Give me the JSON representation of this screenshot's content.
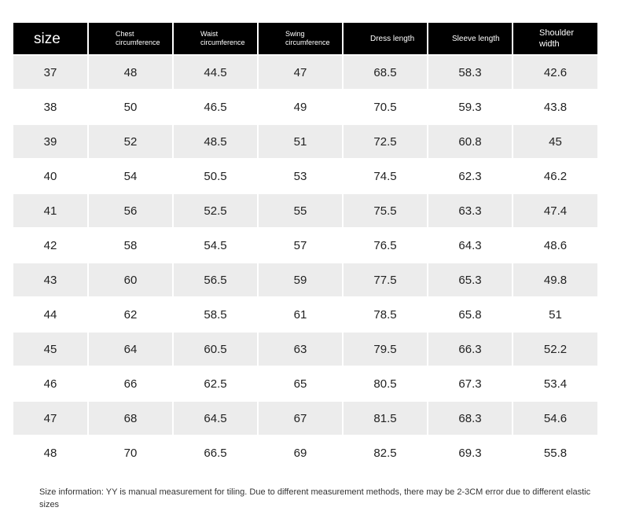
{
  "table": {
    "headers": [
      "size",
      "Chest circumference",
      "Waist circumference",
      "Swing circumference",
      "Dress length",
      "Sleeve length",
      "Shoulder width"
    ],
    "rows": [
      [
        "37",
        "48",
        "44.5",
        "47",
        "68.5",
        "58.3",
        "42.6"
      ],
      [
        "38",
        "50",
        "46.5",
        "49",
        "70.5",
        "59.3",
        "43.8"
      ],
      [
        "39",
        "52",
        "48.5",
        "51",
        "72.5",
        "60.8",
        "45"
      ],
      [
        "40",
        "54",
        "50.5",
        "53",
        "74.5",
        "62.3",
        "46.2"
      ],
      [
        "41",
        "56",
        "52.5",
        "55",
        "75.5",
        "63.3",
        "47.4"
      ],
      [
        "42",
        "58",
        "54.5",
        "57",
        "76.5",
        "64.3",
        "48.6"
      ],
      [
        "43",
        "60",
        "56.5",
        "59",
        "77.5",
        "65.3",
        "49.8"
      ],
      [
        "44",
        "62",
        "58.5",
        "61",
        "78.5",
        "65.8",
        "51"
      ],
      [
        "45",
        "64",
        "60.5",
        "63",
        "79.5",
        "66.3",
        "52.2"
      ],
      [
        "46",
        "66",
        "62.5",
        "65",
        "80.5",
        "67.3",
        "53.4"
      ],
      [
        "47",
        "68",
        "64.5",
        "67",
        "81.5",
        "68.3",
        "54.6"
      ],
      [
        "48",
        "70",
        "66.5",
        "69",
        "82.5",
        "69.3",
        "55.8"
      ]
    ]
  },
  "note": "Size information: YY is manual measurement for tiling. Due to different measurement methods, there may be 2-3CM error due to different elastic sizes"
}
